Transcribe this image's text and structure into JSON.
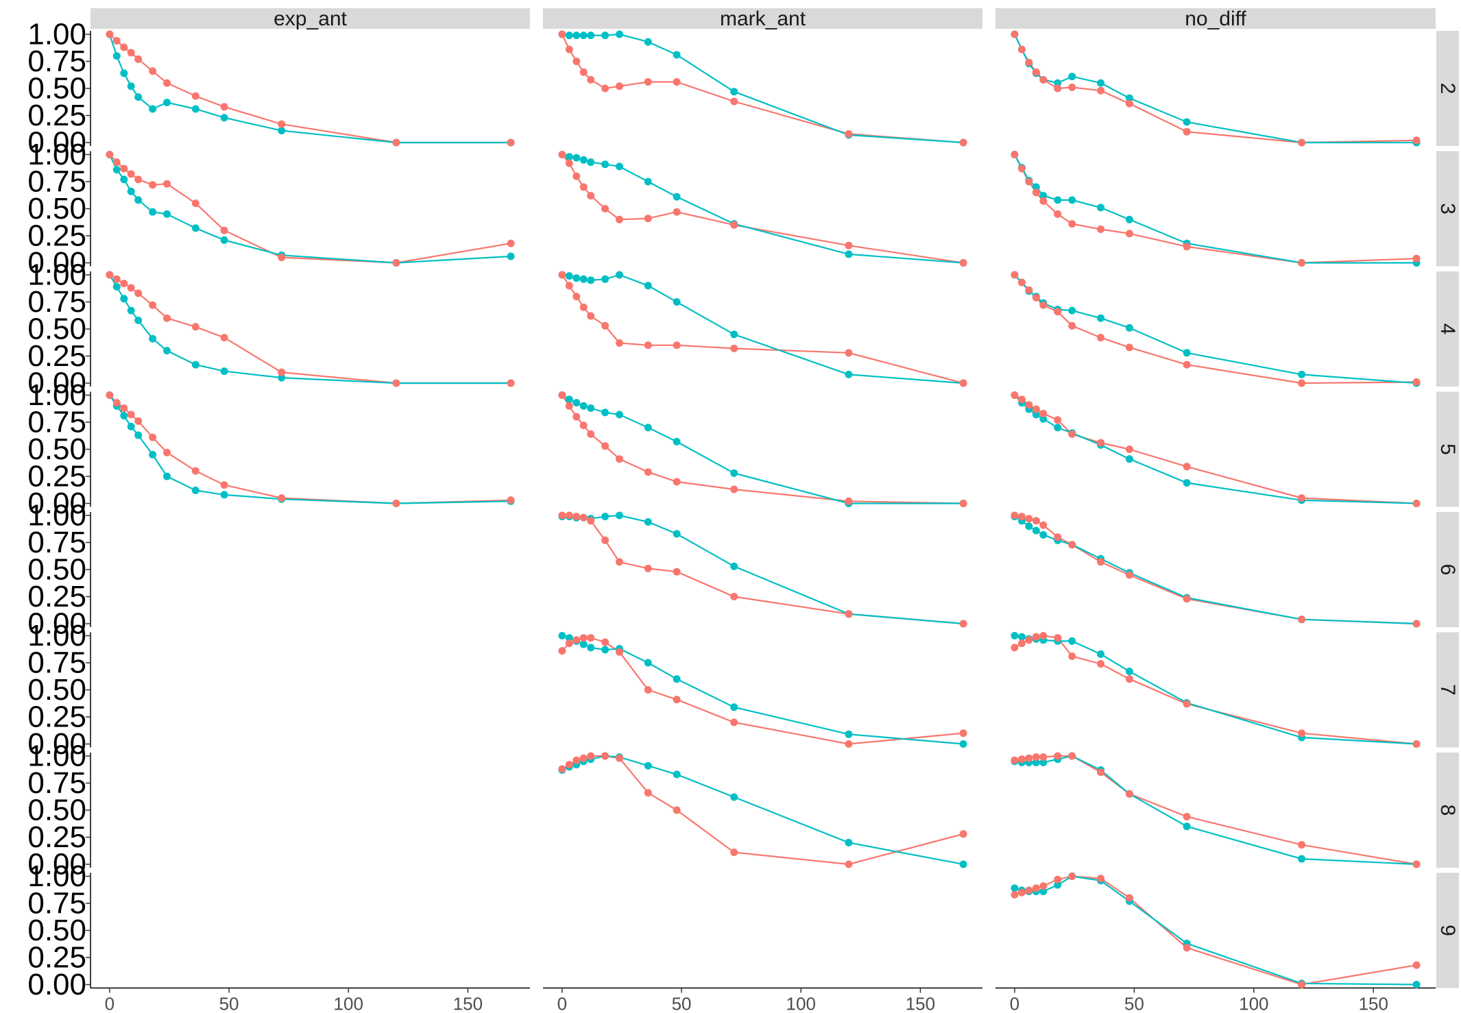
{
  "chart_data": {
    "type": "line",
    "facet_columns": [
      "exp_ant",
      "mark_ant",
      "no_diff"
    ],
    "facet_rows": [
      "2",
      "3",
      "4",
      "5",
      "6",
      "7",
      "8",
      "9"
    ],
    "x": [
      0,
      3,
      6,
      9,
      12,
      18,
      24,
      36,
      48,
      72,
      120,
      168
    ],
    "x_ticks": [
      "0",
      "50",
      "100",
      "150"
    ],
    "y_ticks": [
      "0.00",
      "0.25",
      "0.50",
      "0.75",
      "1.00"
    ],
    "xlim": [
      -8,
      176
    ],
    "ylim": [
      0,
      1
    ],
    "colors": {
      "red": "#F8766D",
      "teal": "#00BFC4"
    },
    "panels": [
      {
        "col": "exp_ant",
        "row": "2",
        "red": [
          1.0,
          0.94,
          0.88,
          0.83,
          0.77,
          0.66,
          0.55,
          0.43,
          0.33,
          0.17,
          0.0,
          0.0
        ],
        "teal": [
          1.0,
          0.8,
          0.64,
          0.52,
          0.42,
          0.31,
          0.37,
          0.31,
          0.23,
          0.11,
          0.0,
          0.0
        ]
      },
      {
        "col": "exp_ant",
        "row": "3",
        "red": [
          1.0,
          0.93,
          0.87,
          0.82,
          0.77,
          0.72,
          0.73,
          0.55,
          0.3,
          0.05,
          0.0,
          0.18
        ],
        "teal": [
          1.0,
          0.86,
          0.77,
          0.66,
          0.58,
          0.47,
          0.45,
          0.32,
          0.21,
          0.07,
          0.0,
          0.06
        ]
      },
      {
        "col": "exp_ant",
        "row": "4",
        "red": [
          1.0,
          0.96,
          0.92,
          0.88,
          0.83,
          0.72,
          0.6,
          0.52,
          0.42,
          0.1,
          0.0,
          0.0
        ],
        "teal": [
          1.0,
          0.89,
          0.78,
          0.67,
          0.58,
          0.41,
          0.3,
          0.17,
          0.11,
          0.05,
          0.0,
          0.0
        ]
      },
      {
        "col": "exp_ant",
        "row": "5",
        "red": [
          1.0,
          0.93,
          0.88,
          0.82,
          0.76,
          0.61,
          0.47,
          0.3,
          0.17,
          0.05,
          0.0,
          0.03
        ],
        "teal": [
          1.0,
          0.9,
          0.81,
          0.71,
          0.63,
          0.45,
          0.25,
          0.12,
          0.08,
          0.04,
          0.0,
          0.02
        ]
      },
      {
        "col": "mark_ant",
        "row": "2",
        "red": [
          1.0,
          0.86,
          0.75,
          0.65,
          0.58,
          0.5,
          0.52,
          0.56,
          0.56,
          0.38,
          0.08,
          0.0
        ],
        "teal": [
          1.0,
          0.99,
          0.99,
          0.99,
          0.99,
          0.99,
          1.0,
          0.93,
          0.81,
          0.47,
          0.07,
          0.0
        ]
      },
      {
        "col": "mark_ant",
        "row": "3",
        "red": [
          1.0,
          0.92,
          0.8,
          0.7,
          0.62,
          0.5,
          0.4,
          0.41,
          0.47,
          0.35,
          0.16,
          0.0
        ],
        "teal": [
          1.0,
          0.98,
          0.97,
          0.95,
          0.93,
          0.91,
          0.89,
          0.75,
          0.61,
          0.36,
          0.08,
          0.0
        ]
      },
      {
        "col": "mark_ant",
        "row": "4",
        "red": [
          1.0,
          0.9,
          0.8,
          0.7,
          0.62,
          0.53,
          0.37,
          0.35,
          0.35,
          0.32,
          0.28,
          0.0
        ],
        "teal": [
          1.0,
          0.99,
          0.97,
          0.96,
          0.95,
          0.96,
          1.0,
          0.9,
          0.75,
          0.45,
          0.08,
          0.0
        ]
      },
      {
        "col": "mark_ant",
        "row": "5",
        "red": [
          1.0,
          0.9,
          0.8,
          0.72,
          0.64,
          0.53,
          0.41,
          0.29,
          0.2,
          0.13,
          0.02,
          0.0
        ],
        "teal": [
          1.0,
          0.96,
          0.93,
          0.9,
          0.88,
          0.84,
          0.82,
          0.7,
          0.57,
          0.28,
          0.0,
          0.0
        ]
      },
      {
        "col": "mark_ant",
        "row": "6",
        "red": [
          1.0,
          1.0,
          0.99,
          0.98,
          0.95,
          0.77,
          0.57,
          0.51,
          0.48,
          0.25,
          0.09,
          0.0
        ],
        "teal": [
          0.99,
          0.99,
          0.98,
          0.98,
          0.97,
          0.99,
          1.0,
          0.94,
          0.83,
          0.53,
          0.09,
          0.0
        ]
      },
      {
        "col": "mark_ant",
        "row": "7",
        "red": [
          0.86,
          0.93,
          0.96,
          0.98,
          0.98,
          0.94,
          0.85,
          0.5,
          0.41,
          0.2,
          0.0,
          0.1
        ],
        "teal": [
          1.0,
          0.98,
          0.95,
          0.92,
          0.89,
          0.87,
          0.88,
          0.75,
          0.6,
          0.34,
          0.09,
          0.0
        ]
      },
      {
        "col": "mark_ant",
        "row": "8",
        "red": [
          0.88,
          0.92,
          0.96,
          0.98,
          1.0,
          1.0,
          0.98,
          0.66,
          0.5,
          0.11,
          0.0,
          0.28
        ],
        "teal": [
          0.87,
          0.9,
          0.92,
          0.95,
          0.97,
          1.0,
          0.99,
          0.91,
          0.83,
          0.62,
          0.2,
          0.0
        ]
      },
      {
        "col": "no_diff",
        "row": "2",
        "red": [
          1.0,
          0.86,
          0.74,
          0.65,
          0.58,
          0.5,
          0.51,
          0.48,
          0.36,
          0.1,
          0.0,
          0.02
        ],
        "teal": [
          1.0,
          0.86,
          0.73,
          0.64,
          0.58,
          0.55,
          0.61,
          0.55,
          0.41,
          0.19,
          0.0,
          0.0
        ]
      },
      {
        "col": "no_diff",
        "row": "3",
        "red": [
          1.0,
          0.87,
          0.75,
          0.65,
          0.57,
          0.45,
          0.36,
          0.31,
          0.27,
          0.15,
          0.0,
          0.04
        ],
        "teal": [
          1.0,
          0.88,
          0.76,
          0.7,
          0.62,
          0.58,
          0.58,
          0.51,
          0.4,
          0.18,
          0.0,
          0.0
        ]
      },
      {
        "col": "no_diff",
        "row": "4",
        "red": [
          1.0,
          0.93,
          0.86,
          0.79,
          0.72,
          0.66,
          0.53,
          0.42,
          0.33,
          0.17,
          0.0,
          0.01
        ],
        "teal": [
          1.0,
          0.93,
          0.85,
          0.8,
          0.74,
          0.68,
          0.67,
          0.6,
          0.51,
          0.28,
          0.08,
          0.0
        ]
      },
      {
        "col": "no_diff",
        "row": "5",
        "red": [
          1.0,
          0.96,
          0.91,
          0.87,
          0.83,
          0.77,
          0.64,
          0.56,
          0.5,
          0.34,
          0.05,
          0.0
        ],
        "teal": [
          1.0,
          0.93,
          0.87,
          0.82,
          0.78,
          0.7,
          0.65,
          0.54,
          0.41,
          0.19,
          0.03,
          0.0
        ]
      },
      {
        "col": "no_diff",
        "row": "6",
        "red": [
          1.0,
          0.99,
          0.97,
          0.95,
          0.91,
          0.8,
          0.73,
          0.57,
          0.45,
          0.23,
          0.04,
          0.0
        ],
        "teal": [
          0.99,
          0.95,
          0.9,
          0.86,
          0.82,
          0.77,
          0.73,
          0.6,
          0.47,
          0.24,
          0.04,
          0.0
        ]
      },
      {
        "col": "no_diff",
        "row": "7",
        "red": [
          0.89,
          0.93,
          0.96,
          0.99,
          1.0,
          0.98,
          0.81,
          0.74,
          0.6,
          0.37,
          0.1,
          0.0
        ],
        "teal": [
          1.0,
          0.99,
          0.97,
          0.97,
          0.96,
          0.95,
          0.95,
          0.83,
          0.67,
          0.38,
          0.06,
          0.0
        ]
      },
      {
        "col": "no_diff",
        "row": "8",
        "red": [
          0.96,
          0.97,
          0.98,
          0.99,
          0.99,
          1.0,
          1.0,
          0.85,
          0.65,
          0.44,
          0.18,
          0.0
        ],
        "teal": [
          0.95,
          0.94,
          0.94,
          0.94,
          0.94,
          0.97,
          1.0,
          0.87,
          0.65,
          0.35,
          0.05,
          0.0
        ]
      },
      {
        "col": "no_diff",
        "row": "9",
        "red": [
          0.83,
          0.85,
          0.87,
          0.89,
          0.91,
          0.97,
          1.0,
          0.98,
          0.8,
          0.34,
          0.0,
          0.18
        ],
        "teal": [
          0.89,
          0.87,
          0.86,
          0.86,
          0.86,
          0.92,
          1.0,
          0.96,
          0.77,
          0.38,
          0.01,
          0.0
        ]
      }
    ]
  }
}
